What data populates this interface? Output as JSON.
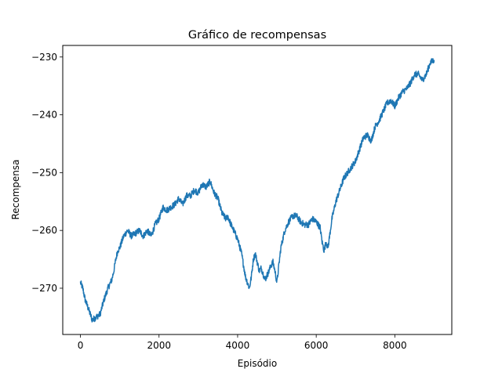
{
  "chart_data": {
    "type": "line",
    "title": "Gráfico de recompensas",
    "xlabel": "Episódio",
    "ylabel": "Recompensa",
    "xlim": [
      -450,
      9450
    ],
    "ylim": [
      -278,
      -228
    ],
    "xticks": [
      0,
      2000,
      4000,
      6000,
      8000
    ],
    "xtick_labels": [
      "0",
      "2000",
      "4000",
      "6000",
      "8000"
    ],
    "yticks": [
      -270,
      -260,
      -250,
      -240,
      -230
    ],
    "ytick_labels": [
      "−270",
      "−260",
      "−250",
      "−240",
      "−230"
    ],
    "grid": false,
    "series": [
      {
        "name": "Recompensa",
        "color": "#1f77b4",
        "x": [
          0,
          60,
          120,
          200,
          300,
          400,
          500,
          600,
          700,
          800,
          850,
          900,
          950,
          1000,
          1100,
          1200,
          1300,
          1400,
          1500,
          1600,
          1700,
          1800,
          1900,
          2000,
          2100,
          2200,
          2300,
          2400,
          2500,
          2600,
          2700,
          2800,
          2900,
          3000,
          3100,
          3200,
          3300,
          3350,
          3400,
          3500,
          3600,
          3700,
          3750,
          3800,
          3900,
          4000,
          4100,
          4200,
          4300,
          4350,
          4400,
          4450,
          4500,
          4550,
          4600,
          4700,
          4800,
          4850,
          4900,
          4950,
          5000,
          5050,
          5100,
          5200,
          5300,
          5400,
          5500,
          5600,
          5700,
          5800,
          5900,
          6000,
          6100,
          6150,
          6200,
          6250,
          6300,
          6350,
          6400,
          6500,
          6600,
          6700,
          6800,
          6900,
          7000,
          7100,
          7200,
          7300,
          7400,
          7500,
          7600,
          7700,
          7800,
          7900,
          8000,
          8100,
          8200,
          8300,
          8400,
          8500,
          8600,
          8700,
          8800,
          8900,
          9000
        ],
        "y": [
          -269,
          -270,
          -272,
          -273.5,
          -275.5,
          -275,
          -274.5,
          -272,
          -270,
          -268.5,
          -267,
          -265,
          -263.5,
          -263,
          -261,
          -260,
          -261,
          -260.5,
          -260,
          -261,
          -260,
          -261,
          -259,
          -258,
          -256,
          -256.5,
          -256,
          -255.5,
          -254.5,
          -255.5,
          -254,
          -254,
          -253,
          -253.5,
          -252,
          -252.5,
          -251.5,
          -252.5,
          -253.5,
          -254.5,
          -257,
          -258,
          -257.5,
          -258.5,
          -260,
          -261.5,
          -264,
          -268,
          -270,
          -268,
          -265,
          -264,
          -265.5,
          -267,
          -266.5,
          -268.5,
          -267,
          -266,
          -265.5,
          -267,
          -269,
          -266,
          -263,
          -260,
          -258.5,
          -257.5,
          -257.5,
          -258.5,
          -259,
          -259,
          -258,
          -258.5,
          -259.5,
          -262,
          -263.5,
          -262,
          -263,
          -260.5,
          -258,
          -255,
          -253,
          -251,
          -250,
          -249,
          -248,
          -246,
          -244,
          -243.5,
          -244.5,
          -242,
          -241,
          -239.5,
          -238,
          -237.5,
          -238.5,
          -237,
          -236,
          -235.5,
          -234.5,
          -233,
          -233,
          -234,
          -233,
          -231,
          -230.5
        ]
      }
    ]
  }
}
